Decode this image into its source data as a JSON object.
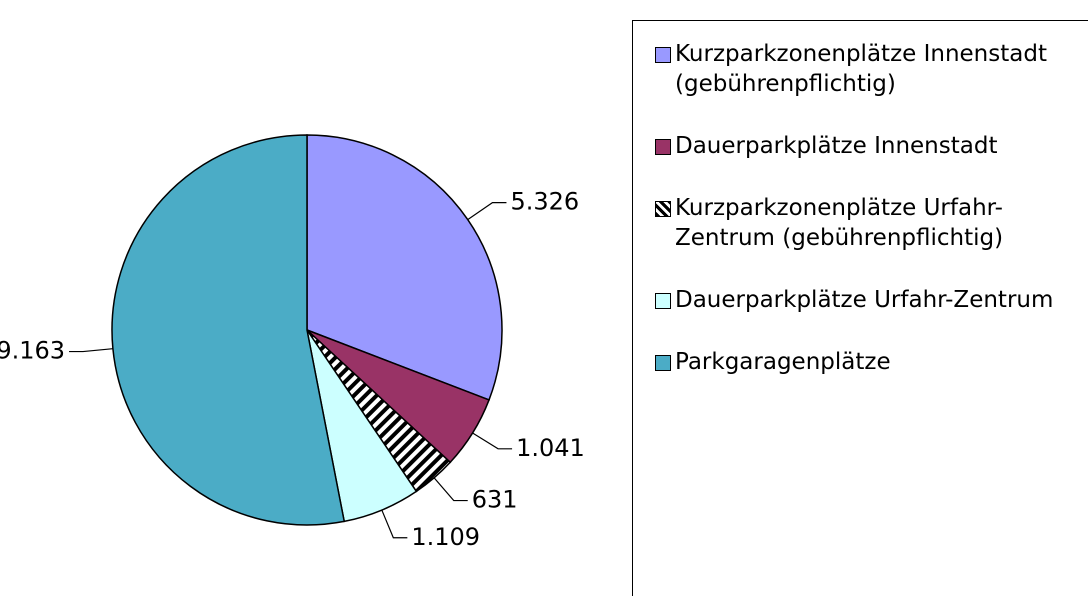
{
  "chart_data": {
    "type": "pie",
    "categories": [
      "Kurzparkzonenplätze Innenstadt (gebührenpflichtig)",
      "Dauerparkplätze Innenstadt",
      "Kurzparkzonenplätze Urfahr-Zentrum (gebührenpflichtig)",
      "Dauerparkplätze Urfahr-Zentrum",
      "Parkgaragenplätze"
    ],
    "values": [
      5326,
      1041,
      631,
      1109,
      9163
    ],
    "value_labels": [
      "5.326",
      "1.041",
      "631",
      "1.109",
      "9.163"
    ],
    "colors": [
      "#9999ff",
      "#993366",
      "hatch",
      "#ccffff",
      "#4bacc6"
    ],
    "legend": "right"
  }
}
